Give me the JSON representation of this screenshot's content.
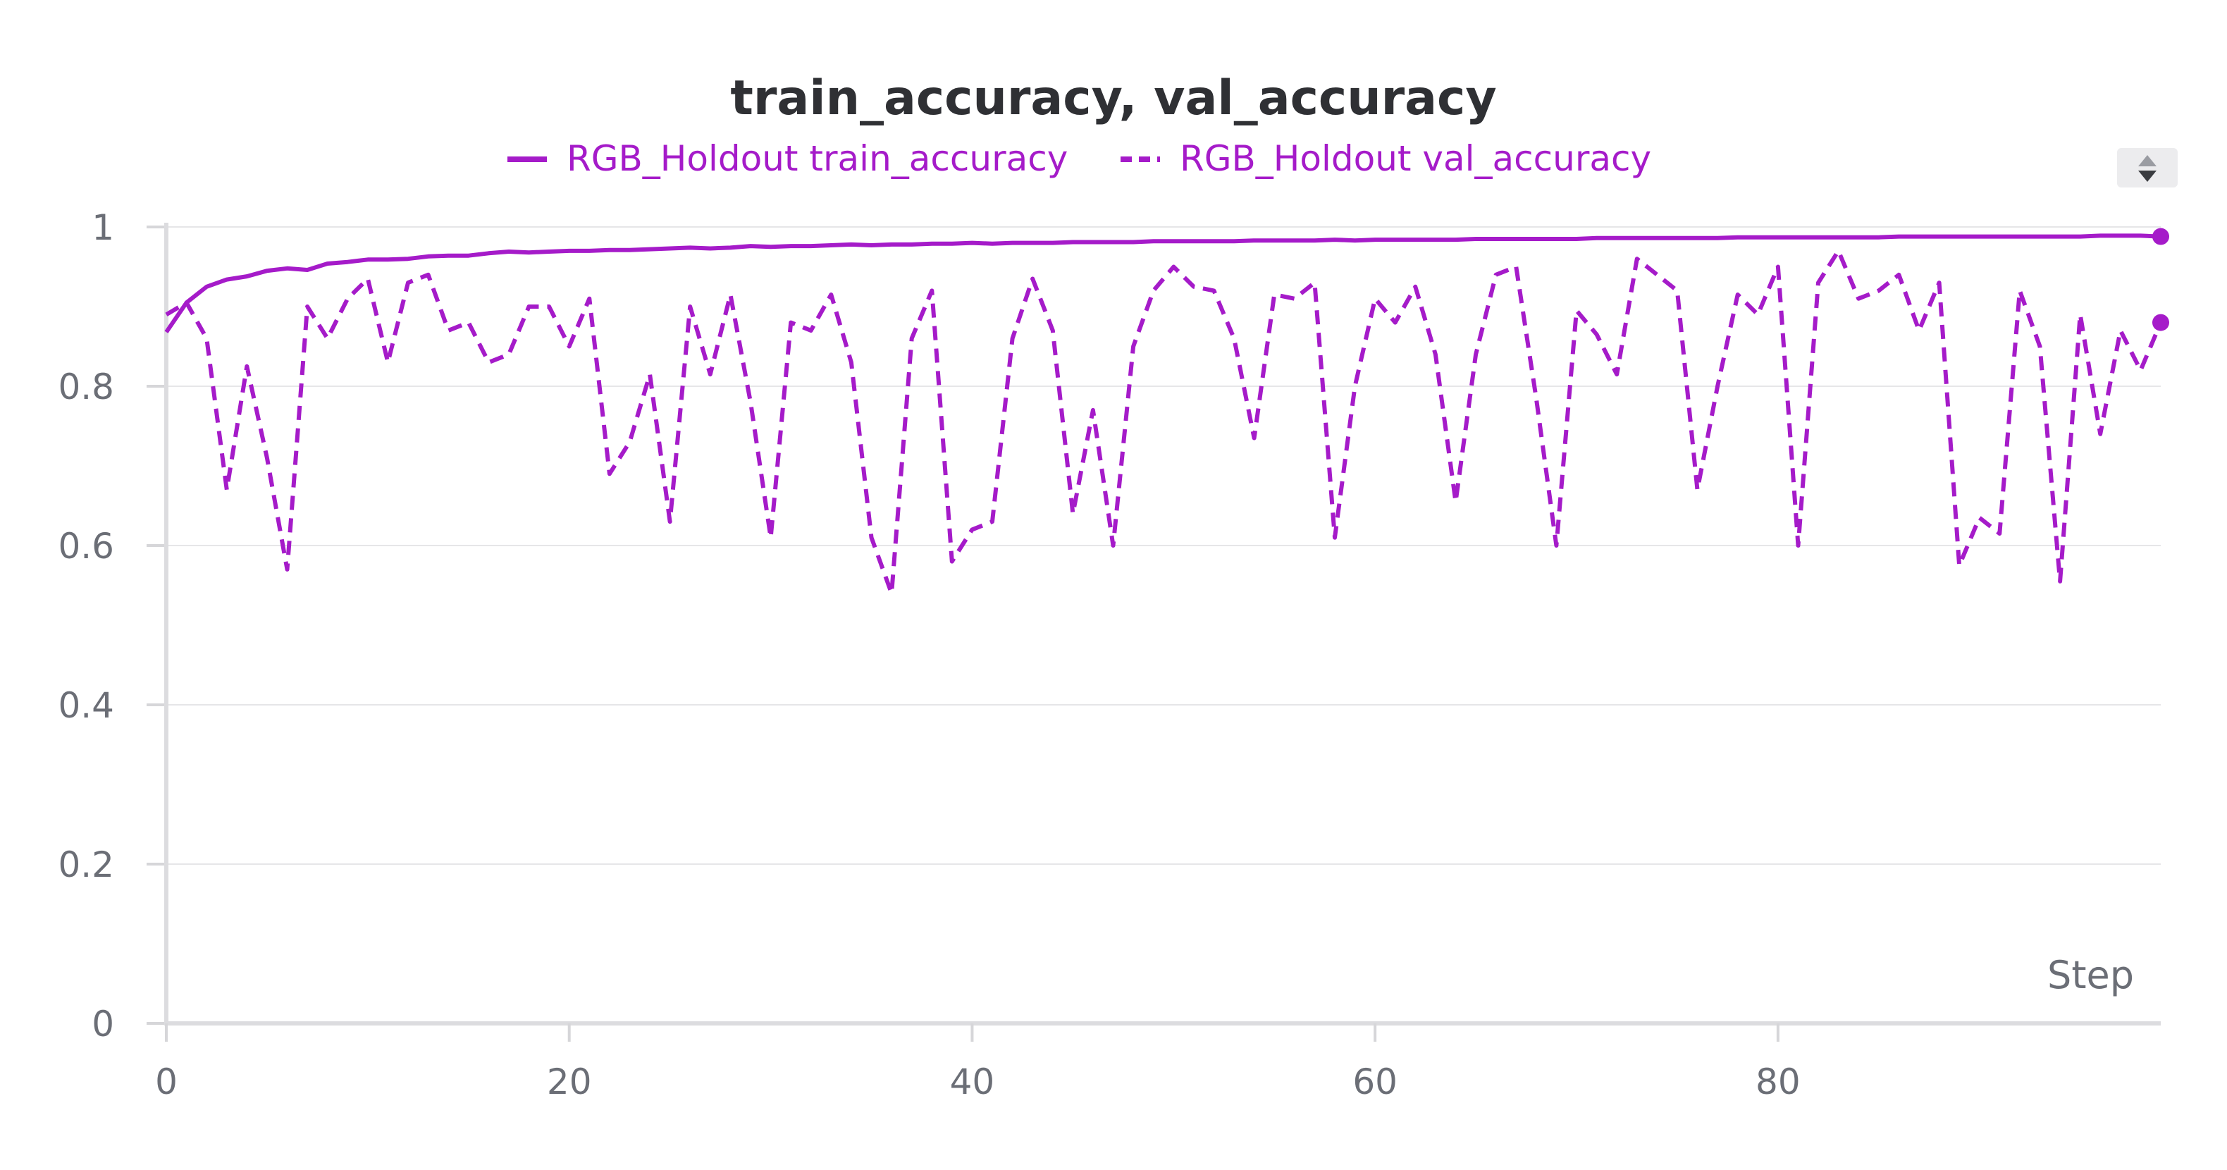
{
  "chart_data": {
    "type": "line",
    "title": "train_accuracy, val_accuracy",
    "xlabel": "Step",
    "ylabel": "",
    "xlim": [
      0,
      99
    ],
    "ylim": [
      0,
      1
    ],
    "x_ticks": [
      0,
      20,
      40,
      60,
      80
    ],
    "x_tick_labels": [
      "0",
      "20",
      "40",
      "60",
      "80"
    ],
    "y_ticks": [
      0,
      0.2,
      0.4,
      0.6,
      0.8,
      1
    ],
    "y_tick_labels": [
      "0",
      "0.2",
      "0.4",
      "0.6",
      "0.8",
      "1"
    ],
    "grid": true,
    "legend_position": "top-center",
    "color": "#a51bc9",
    "series": [
      {
        "name": "RGB_Holdout train_accuracy",
        "style": "solid",
        "x": [
          0,
          1,
          2,
          3,
          4,
          5,
          6,
          7,
          8,
          9,
          10,
          11,
          12,
          13,
          14,
          15,
          16,
          17,
          18,
          19,
          20,
          21,
          22,
          23,
          24,
          25,
          26,
          27,
          28,
          29,
          30,
          31,
          32,
          33,
          34,
          35,
          36,
          37,
          38,
          39,
          40,
          41,
          42,
          43,
          44,
          45,
          46,
          47,
          48,
          49,
          50,
          51,
          52,
          53,
          54,
          55,
          56,
          57,
          58,
          59,
          60,
          61,
          62,
          63,
          64,
          65,
          66,
          67,
          68,
          69,
          70,
          71,
          72,
          73,
          74,
          75,
          76,
          77,
          78,
          79,
          80,
          81,
          82,
          83,
          84,
          85,
          86,
          87,
          88,
          89,
          90,
          91,
          92,
          93,
          94,
          95,
          96,
          97,
          98,
          99
        ],
        "values": [
          0.868,
          0.905,
          0.925,
          0.934,
          0.938,
          0.945,
          0.948,
          0.946,
          0.954,
          0.956,
          0.959,
          0.959,
          0.96,
          0.963,
          0.964,
          0.964,
          0.967,
          0.969,
          0.968,
          0.969,
          0.97,
          0.97,
          0.971,
          0.971,
          0.972,
          0.973,
          0.974,
          0.973,
          0.974,
          0.976,
          0.975,
          0.976,
          0.976,
          0.977,
          0.978,
          0.977,
          0.978,
          0.978,
          0.979,
          0.979,
          0.98,
          0.979,
          0.98,
          0.98,
          0.98,
          0.981,
          0.981,
          0.981,
          0.981,
          0.982,
          0.982,
          0.982,
          0.982,
          0.982,
          0.983,
          0.983,
          0.983,
          0.983,
          0.984,
          0.983,
          0.984,
          0.984,
          0.984,
          0.984,
          0.984,
          0.985,
          0.985,
          0.985,
          0.985,
          0.985,
          0.985,
          0.986,
          0.986,
          0.986,
          0.986,
          0.986,
          0.986,
          0.986,
          0.987,
          0.987,
          0.987,
          0.987,
          0.987,
          0.987,
          0.987,
          0.987,
          0.988,
          0.988,
          0.988,
          0.988,
          0.988,
          0.988,
          0.988,
          0.988,
          0.988,
          0.988,
          0.989,
          0.989,
          0.989,
          0.988
        ]
      },
      {
        "name": "RGB_Holdout val_accuracy",
        "style": "dashed",
        "x": [
          0,
          1,
          2,
          3,
          4,
          5,
          6,
          7,
          8,
          9,
          10,
          11,
          12,
          13,
          14,
          15,
          16,
          17,
          18,
          19,
          20,
          21,
          22,
          23,
          24,
          25,
          26,
          27,
          28,
          29,
          30,
          31,
          32,
          33,
          34,
          35,
          36,
          37,
          38,
          39,
          40,
          41,
          42,
          43,
          44,
          45,
          46,
          47,
          48,
          49,
          50,
          51,
          52,
          53,
          54,
          55,
          56,
          57,
          58,
          59,
          60,
          61,
          62,
          63,
          64,
          65,
          66,
          67,
          68,
          69,
          70,
          71,
          72,
          73,
          74,
          75,
          76,
          77,
          78,
          79,
          80,
          81,
          82,
          83,
          84,
          85,
          86,
          87,
          88,
          89,
          90,
          91,
          92,
          93,
          94,
          95,
          96,
          97,
          98,
          99
        ],
        "values": [
          0.89,
          0.905,
          0.86,
          0.67,
          0.825,
          0.71,
          0.57,
          0.9,
          0.86,
          0.91,
          0.935,
          0.83,
          0.93,
          0.94,
          0.87,
          0.88,
          0.83,
          0.84,
          0.9,
          0.9,
          0.85,
          0.91,
          0.69,
          0.73,
          0.815,
          0.63,
          0.9,
          0.815,
          0.915,
          0.78,
          0.61,
          0.88,
          0.87,
          0.915,
          0.83,
          0.61,
          0.54,
          0.86,
          0.92,
          0.58,
          0.62,
          0.63,
          0.86,
          0.935,
          0.87,
          0.64,
          0.77,
          0.6,
          0.85,
          0.92,
          0.95,
          0.925,
          0.92,
          0.86,
          0.735,
          0.915,
          0.91,
          0.93,
          0.61,
          0.8,
          0.91,
          0.88,
          0.925,
          0.84,
          0.655,
          0.84,
          0.94,
          0.95,
          0.785,
          0.6,
          0.895,
          0.865,
          0.815,
          0.96,
          0.94,
          0.92,
          0.67,
          0.8,
          0.915,
          0.89,
          0.95,
          0.6,
          0.93,
          0.97,
          0.91,
          0.92,
          0.94,
          0.87,
          0.93,
          0.575,
          0.635,
          0.615,
          0.92,
          0.85,
          0.555,
          0.89,
          0.74,
          0.87,
          0.82,
          0.88
        ]
      }
    ]
  },
  "ui": {
    "scroll_control": "sort-arrows-icon"
  }
}
